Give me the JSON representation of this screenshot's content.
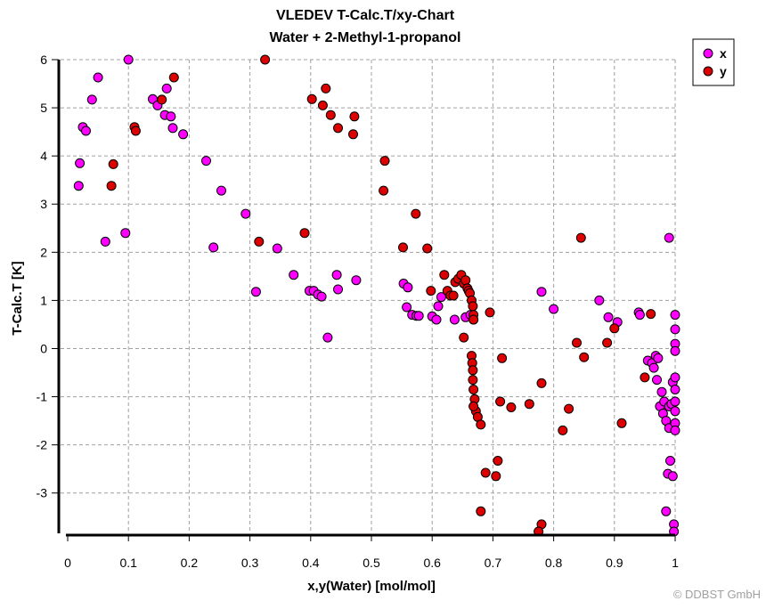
{
  "chart_data": {
    "type": "scatter",
    "title": "VLEDEV T-Calc.T/xy-Chart",
    "subtitle": "Water + 2-Methyl-1-propanol",
    "xlabel": "x,y(Water) [mol/mol]",
    "ylabel": "T-Calc.T [K]",
    "xlim": [
      0,
      1
    ],
    "ylim": [
      -3.8,
      6
    ],
    "x_ticks": [
      "0",
      "0.1",
      "0.2",
      "0.3",
      "0.4",
      "0.5",
      "0.6",
      "0.7",
      "0.8",
      "0.9",
      "1"
    ],
    "y_ticks": [
      "-3",
      "-2",
      "-1",
      "0",
      "1",
      "2",
      "3",
      "4",
      "5",
      "6"
    ],
    "grid": true,
    "legend_position": "right-top",
    "series": [
      {
        "name": "x",
        "color": "#ff00ff",
        "points": [
          [
            0.02,
            3.85
          ],
          [
            0.018,
            3.38
          ],
          [
            0.025,
            4.6
          ],
          [
            0.03,
            4.52
          ],
          [
            0.04,
            5.17
          ],
          [
            0.05,
            5.63
          ],
          [
            0.062,
            2.22
          ],
          [
            0.095,
            2.4
          ],
          [
            0.1,
            6.0
          ],
          [
            0.14,
            5.18
          ],
          [
            0.148,
            5.05
          ],
          [
            0.16,
            4.85
          ],
          [
            0.163,
            5.4
          ],
          [
            0.17,
            4.82
          ],
          [
            0.173,
            4.58
          ],
          [
            0.19,
            4.45
          ],
          [
            0.228,
            3.9
          ],
          [
            0.24,
            2.1
          ],
          [
            0.253,
            3.28
          ],
          [
            0.293,
            2.8
          ],
          [
            0.31,
            1.18
          ],
          [
            0.345,
            2.08
          ],
          [
            0.372,
            1.53
          ],
          [
            0.398,
            1.2
          ],
          [
            0.405,
            1.2
          ],
          [
            0.412,
            1.12
          ],
          [
            0.418,
            1.08
          ],
          [
            0.428,
            0.23
          ],
          [
            0.443,
            1.53
          ],
          [
            0.445,
            1.23
          ],
          [
            0.475,
            1.42
          ],
          [
            0.553,
            1.35
          ],
          [
            0.558,
            0.86
          ],
          [
            0.56,
            1.27
          ],
          [
            0.567,
            0.7
          ],
          [
            0.574,
            0.68
          ],
          [
            0.578,
            0.68
          ],
          [
            0.6,
            0.67
          ],
          [
            0.607,
            0.6
          ],
          [
            0.61,
            0.88
          ],
          [
            0.615,
            1.07
          ],
          [
            0.637,
            0.6
          ],
          [
            0.645,
            1.45
          ],
          [
            0.655,
            0.65
          ],
          [
            0.663,
            0.7
          ],
          [
            0.668,
            0.6
          ],
          [
            0.78,
            1.18
          ],
          [
            0.8,
            0.82
          ],
          [
            0.875,
            1.0
          ],
          [
            0.89,
            0.65
          ],
          [
            0.905,
            0.55
          ],
          [
            0.94,
            0.75
          ],
          [
            0.942,
            0.7
          ],
          [
            0.955,
            -0.25
          ],
          [
            0.962,
            -0.3
          ],
          [
            0.965,
            -0.4
          ],
          [
            0.968,
            -0.15
          ],
          [
            0.97,
            -0.65
          ],
          [
            0.972,
            -0.2
          ],
          [
            0.975,
            -1.2
          ],
          [
            0.978,
            -0.9
          ],
          [
            0.98,
            -1.35
          ],
          [
            0.982,
            -1.1
          ],
          [
            0.985,
            -1.5
          ],
          [
            0.985,
            -3.38
          ],
          [
            0.988,
            -2.6
          ],
          [
            0.99,
            -1.65
          ],
          [
            0.99,
            2.3
          ],
          [
            0.99,
            -1.2
          ],
          [
            0.992,
            -2.33
          ],
          [
            0.994,
            -1.15
          ],
          [
            0.996,
            -0.7
          ],
          [
            0.996,
            -2.65
          ],
          [
            0.998,
            -3.65
          ],
          [
            0.998,
            -3.8
          ],
          [
            1.0,
            0.7
          ],
          [
            1.0,
            0.4
          ],
          [
            1.0,
            0.1
          ],
          [
            1.0,
            -0.05
          ],
          [
            1.0,
            -0.6
          ],
          [
            1.0,
            -0.85
          ],
          [
            1.0,
            -1.1
          ],
          [
            1.0,
            -1.3
          ],
          [
            1.0,
            -1.55
          ],
          [
            1.0,
            -1.7
          ]
        ]
      },
      {
        "name": "y",
        "color": "#dd0000",
        "points": [
          [
            0.075,
            3.83
          ],
          [
            0.072,
            3.38
          ],
          [
            0.11,
            4.6
          ],
          [
            0.112,
            4.52
          ],
          [
            0.155,
            5.17
          ],
          [
            0.175,
            5.63
          ],
          [
            0.315,
            2.22
          ],
          [
            0.325,
            6.0
          ],
          [
            0.39,
            2.4
          ],
          [
            0.402,
            5.18
          ],
          [
            0.42,
            5.05
          ],
          [
            0.425,
            5.4
          ],
          [
            0.433,
            4.85
          ],
          [
            0.445,
            4.58
          ],
          [
            0.47,
            4.45
          ],
          [
            0.472,
            4.82
          ],
          [
            0.52,
            3.28
          ],
          [
            0.522,
            3.9
          ],
          [
            0.552,
            2.1
          ],
          [
            0.573,
            2.8
          ],
          [
            0.592,
            2.08
          ],
          [
            0.598,
            1.2
          ],
          [
            0.62,
            1.53
          ],
          [
            0.625,
            1.2
          ],
          [
            0.63,
            1.1
          ],
          [
            0.635,
            1.1
          ],
          [
            0.638,
            1.38
          ],
          [
            0.643,
            1.45
          ],
          [
            0.648,
            1.53
          ],
          [
            0.652,
            1.35
          ],
          [
            0.655,
            1.42
          ],
          [
            0.658,
            1.25
          ],
          [
            0.66,
            1.2
          ],
          [
            0.662,
            1.15
          ],
          [
            0.665,
            1.0
          ],
          [
            0.667,
            0.88
          ],
          [
            0.668,
            0.7
          ],
          [
            0.668,
            0.6
          ],
          [
            0.652,
            0.23
          ],
          [
            0.665,
            -0.15
          ],
          [
            0.666,
            -0.3
          ],
          [
            0.667,
            -0.45
          ],
          [
            0.667,
            -0.65
          ],
          [
            0.668,
            -0.85
          ],
          [
            0.67,
            -1.05
          ],
          [
            0.672,
            -1.3
          ],
          [
            0.668,
            -1.2
          ],
          [
            0.675,
            -1.42
          ],
          [
            0.68,
            -1.58
          ],
          [
            0.68,
            -3.38
          ],
          [
            0.688,
            -2.58
          ],
          [
            0.695,
            0.75
          ],
          [
            0.705,
            -2.65
          ],
          [
            0.708,
            -2.33
          ],
          [
            0.715,
            -0.2
          ],
          [
            0.712,
            -1.1
          ],
          [
            0.73,
            -1.22
          ],
          [
            0.76,
            -1.15
          ],
          [
            0.78,
            -0.72
          ],
          [
            0.78,
            -3.65
          ],
          [
            0.775,
            -3.8
          ],
          [
            0.815,
            -1.7
          ],
          [
            0.825,
            -1.25
          ],
          [
            0.838,
            0.12
          ],
          [
            0.845,
            2.3
          ],
          [
            0.85,
            -0.18
          ],
          [
            0.888,
            0.12
          ],
          [
            0.9,
            0.42
          ],
          [
            0.912,
            -1.55
          ],
          [
            0.95,
            -0.6
          ],
          [
            0.96,
            0.72
          ]
        ]
      }
    ]
  },
  "copyright": "© DDBST GmbH"
}
